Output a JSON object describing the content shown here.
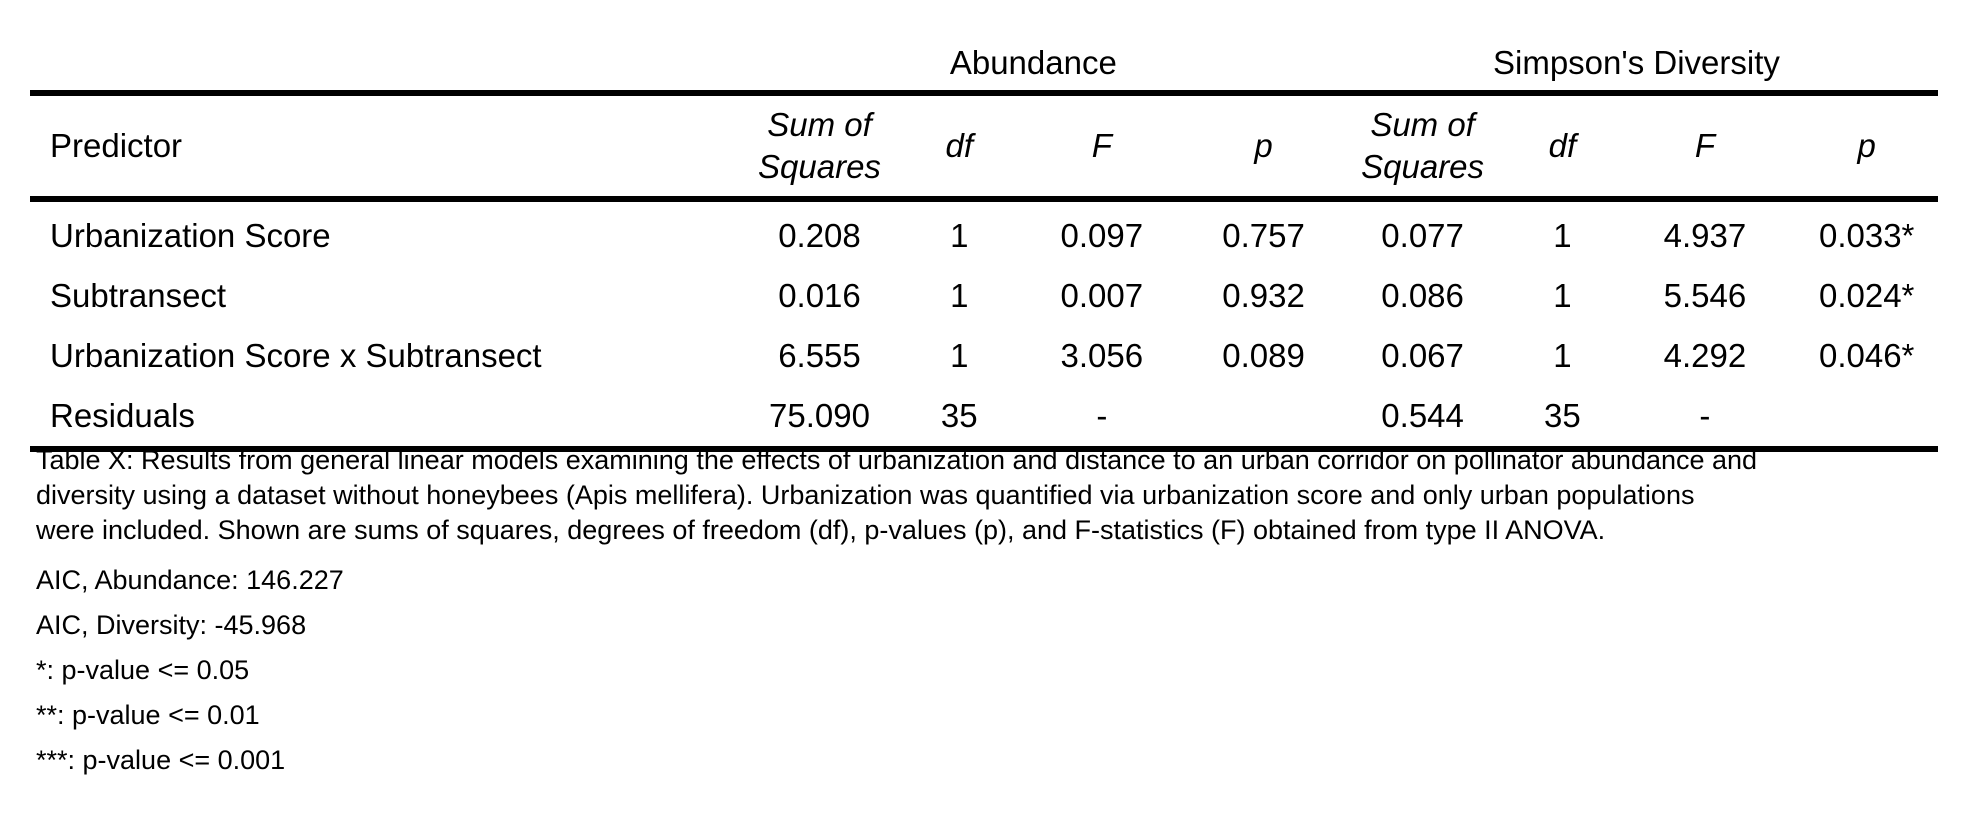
{
  "table": {
    "groups": {
      "abundance": "Abundance",
      "diversity": "Simpson's Diversity"
    },
    "headers": {
      "predictor": "Predictor",
      "ss_line1": "Sum of",
      "ss_line2": "Squares",
      "df": "df",
      "f": "F",
      "p": "p"
    },
    "rows": [
      {
        "predictor": "Urbanization Score",
        "ab_ss": "0.208",
        "ab_df": "1",
        "ab_f": "0.097",
        "ab_p": "0.757",
        "dv_ss": "0.077",
        "dv_df": "1",
        "dv_f": "4.937",
        "dv_p": "0.033*"
      },
      {
        "predictor": "Subtransect",
        "ab_ss": "0.016",
        "ab_df": "1",
        "ab_f": "0.007",
        "ab_p": "0.932",
        "dv_ss": "0.086",
        "dv_df": "1",
        "dv_f": "5.546",
        "dv_p": "0.024*"
      },
      {
        "predictor": "Urbanization Score x Subtransect",
        "ab_ss": "6.555",
        "ab_df": "1",
        "ab_f": "3.056",
        "ab_p": "0.089",
        "dv_ss": "0.067",
        "dv_df": "1",
        "dv_f": "4.292",
        "dv_p": "0.046*"
      },
      {
        "predictor": "Residuals",
        "ab_ss": "75.090",
        "ab_df": "35",
        "ab_f": "-",
        "ab_p": "",
        "dv_ss": "0.544",
        "dv_df": "35",
        "dv_f": "-",
        "dv_p": ""
      }
    ]
  },
  "caption": {
    "line1": "Table X: Results from general linear models examining the effects of urbanization and distance to an urban corridor on pollinator abundance and",
    "line2": "diversity using a dataset without honeybees (Apis mellifera). Urbanization was quantified via urbanization score and only urban populations",
    "line3": "were included. Shown are sums of squares, degrees of freedom (df), p-values (p), and F-statistics (F) obtained from type II ANOVA."
  },
  "notes": {
    "aic_abundance": "AIC, Abundance: 146.227",
    "aic_diversity": "AIC, Diversity: -45.968",
    "sig1": "*: p-value <= 0.05",
    "sig2": "**: p-value <= 0.01",
    "sig3": "***: p-value <= 0.001"
  }
}
